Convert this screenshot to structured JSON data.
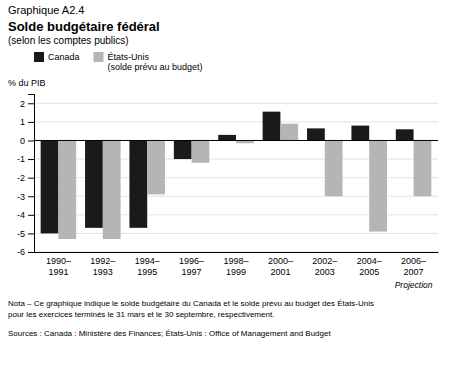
{
  "chart_data": {
    "type": "bar",
    "title": [
      "Graphique A2.4",
      "Solde budgétaire fédéral",
      "(selon les comptes publics)"
    ],
    "ylabel": "% du PIB",
    "categories": [
      "1990–\n1991",
      "1992–\n1993",
      "1994–\n1995",
      "1996–\n1997",
      "1998–\n1999",
      "2000–\n2001",
      "2002–\n2003",
      "2004–\n2005",
      "2006–\n2007"
    ],
    "series": [
      {
        "name": "Canada",
        "color": "#1a1a1a",
        "values": [
          -5.0,
          -4.7,
          -4.7,
          -1.0,
          0.3,
          1.55,
          0.65,
          0.8,
          0.6
        ]
      },
      {
        "name": "États-Unis\n(solde prévu au budget)",
        "color": "#b5b5b5",
        "values": [
          -5.3,
          -5.3,
          -2.9,
          -1.2,
          -0.15,
          0.9,
          -3.0,
          -4.9,
          -3.0
        ]
      }
    ],
    "ylim": [
      -6,
      2.5
    ],
    "yticks": [
      -6,
      -5,
      -4,
      -3,
      -2,
      -1,
      0,
      1,
      2
    ],
    "grid": true,
    "legend": "upper left",
    "annotations": [
      {
        "text": "Projection",
        "category": "2006–\n2007"
      }
    ],
    "note": "Nota – Ce graphique indique le solde budgétaire du Canada et le solde prévu au budget des États-Unis\npour les exercices terminés le 31 mars et le 30 septembre, respectivement.",
    "source": "Sources : Canada : Ministère des Finances; États-Unis : Office of Management and Budget"
  }
}
